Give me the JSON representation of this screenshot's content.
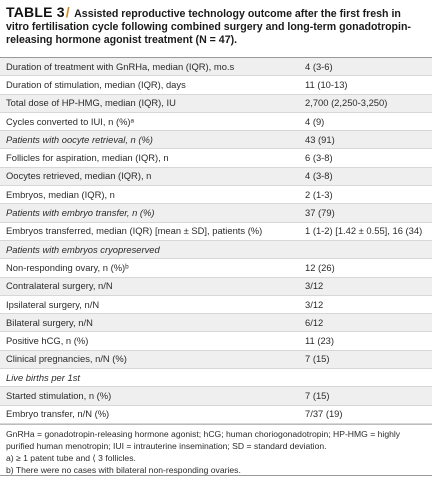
{
  "caption": {
    "label": "TABLE 3",
    "slash": "/",
    "text": "Assisted reproductive technology outcome after the first fresh in vitro fertilisation cycle following combined surgery and long-term gonadotropin-releasing hormone agonist treatment (N = 47)."
  },
  "rows": [
    {
      "label": "Duration of treatment with GnRHa, median (IQR), mo.s",
      "value": "4 (3-6)",
      "style": "alt"
    },
    {
      "label": "Duration of stimulation, median (IQR), days",
      "value": "11 (10-13)",
      "style": ""
    },
    {
      "label": "Total dose of HP-HMG, median (IQR), IU",
      "value": "2,700 (2,250-3,250)",
      "style": "alt"
    },
    {
      "label": "Cycles converted to IUI, n (%)ᵃ",
      "value": "4 (9)",
      "style": ""
    },
    {
      "label": "Patients with oocyte retrieval, n (%)",
      "value": "43 (91)",
      "style": "alt section"
    },
    {
      "label": "Follicles for aspiration, median (IQR), n",
      "value": "6 (3-8)",
      "style": ""
    },
    {
      "label": "Oocytes retrieved, median (IQR), n",
      "value": "4 (3-8)",
      "style": "alt"
    },
    {
      "label": "Embryos, median (IQR), n",
      "value": "2 (1-3)",
      "style": ""
    },
    {
      "label": "Patients with embryo transfer, n (%)",
      "value": "37 (79)",
      "style": "alt section"
    },
    {
      "label": "Embryos transferred, median (IQR) [mean ± SD], patients (%)",
      "value": "1 (1-2) [1.42 ± 0.55], 16 (34)",
      "style": ""
    },
    {
      "label": "Patients with embryos cryopreserved",
      "value": "",
      "style": "alt section"
    },
    {
      "label": "Non-responding ovary, n (%)ᵇ",
      "value": "12 (26)",
      "style": ""
    },
    {
      "label": "Contralateral surgery, n/N",
      "value": "3/12",
      "style": "alt"
    },
    {
      "label": "Ipsilateral surgery, n/N",
      "value": "3/12",
      "style": ""
    },
    {
      "label": "Bilateral surgery, n/N",
      "value": "6/12",
      "style": "alt"
    },
    {
      "label": "Positive hCG, n (%)",
      "value": "11 (23)",
      "style": ""
    },
    {
      "label": "Clinical pregnancies, n/N (%)",
      "value": "7 (15)",
      "style": "alt"
    },
    {
      "label": "Live births per 1st",
      "value": "",
      "style": "section"
    },
    {
      "label": "Started stimulation, n (%)",
      "value": "7 (15)",
      "style": "alt"
    },
    {
      "label": "Embryo transfer, n/N (%)",
      "value": "7/37 (19)",
      "style": ""
    }
  ],
  "footer": {
    "abbrev": "GnRHa = gonadotropin-releasing hormone agonist; hCG; human choriogonadotropin; HP-HMG = highly purified human menotropin; IUI = intrauterine insemination; SD = standard deviation.",
    "note_a": "a) ≥ 1 patent tube and ⟨ 3 follicles.",
    "note_b": "b) There were no cases with bilateral non-responding ovaries."
  }
}
